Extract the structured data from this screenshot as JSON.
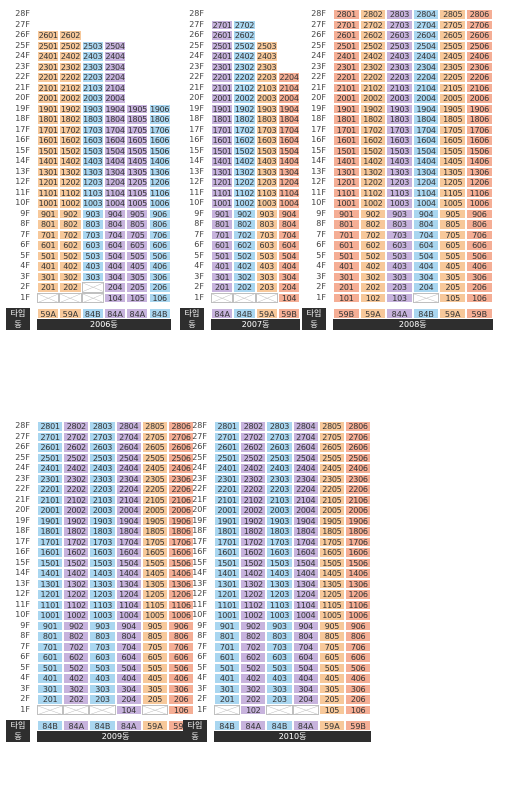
{
  "type_label": "타입\n동",
  "colors": {
    "84B": "#a9d6f0",
    "84A": "#c7b3dd",
    "59A": "#f7c89a",
    "59B": "#f5ae95"
  },
  "floor_labels": [
    "28F",
    "27F",
    "26F",
    "25F",
    "24F",
    "23F",
    "22F",
    "21F",
    "20F",
    "19F",
    "18F",
    "17F",
    "16F",
    "15F",
    "14F",
    "13F",
    "12F",
    "11F",
    "10F",
    "9F",
    "8F",
    "7F",
    "6F",
    "5F",
    "4F",
    "3F",
    "2F",
    "1F"
  ],
  "buildings": [
    {
      "name": "2006동",
      "types": [
        "59A",
        "59A",
        "84B",
        "84A",
        "84A",
        "84B"
      ],
      "top": [
        26,
        26,
        25,
        25,
        19,
        19
      ],
      "voids": [
        [
          1,
          1
        ],
        [
          2,
          1
        ],
        [
          3,
          1
        ],
        [
          3,
          2
        ]
      ]
    },
    {
      "name": "2007동",
      "types": [
        "84A",
        "84B",
        "59A",
        "59B"
      ],
      "top": [
        27,
        27,
        25,
        22
      ],
      "voids": [
        [
          1,
          1
        ],
        [
          2,
          1
        ],
        [
          3,
          1
        ]
      ]
    },
    {
      "name": "2008동",
      "types": [
        "59B",
        "59A",
        "84A",
        "84B",
        "59A",
        "59B"
      ],
      "top": [
        28,
        28,
        28,
        28,
        28,
        28
      ],
      "voids": [
        [
          4,
          1
        ]
      ]
    },
    {
      "name": "2009동",
      "types": [
        "84B",
        "84A",
        "84B",
        "84A",
        "59A",
        "59B"
      ],
      "top": [
        28,
        28,
        28,
        28,
        28,
        28
      ],
      "voids": [
        [
          1,
          1
        ],
        [
          2,
          1
        ],
        [
          3,
          1
        ],
        [
          5,
          1
        ]
      ]
    },
    {
      "name": "2010동",
      "types": [
        "84B",
        "84A",
        "84B",
        "84A",
        "59A",
        "59B"
      ],
      "top": [
        28,
        28,
        28,
        28,
        28,
        28
      ],
      "voids": [
        [
          1,
          1
        ],
        [
          3,
          1
        ],
        [
          4,
          1
        ]
      ]
    }
  ]
}
